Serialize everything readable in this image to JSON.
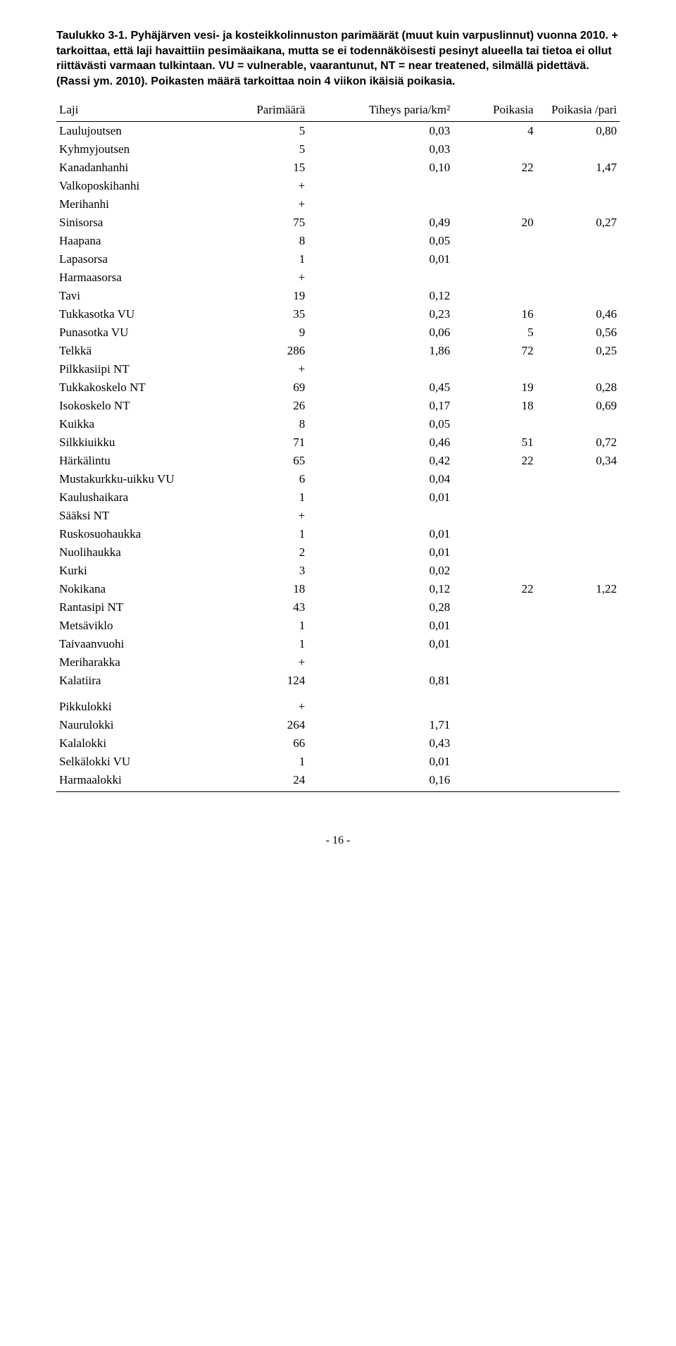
{
  "caption": "Taulukko 3-1. Pyhäjärven vesi- ja kosteikkolinnuston parimäärät (muut kuin varpuslinnut) vuonna 2010. + tarkoittaa, että laji havaittiin pesimäaikana, mutta se ei todennäköisesti pesinyt alueella tai tietoa ei ollut riittävästi varmaan tulkintaan. VU = vulnerable, vaarantunut, NT = near treatened, silmällä pidettävä. (Rassi ym. 2010). Poikasten määrä tarkoittaa noin 4 viikon ikäisiä poikasia.",
  "columns": {
    "laji": "Laji",
    "parimaara": "Parimäärä",
    "tiheys": "Tiheys paria/km²",
    "poikasia": "Poikasia",
    "poikasia_pari": "Poikasia /pari"
  },
  "rows": [
    {
      "laji": "Laulujoutsen",
      "pari": "5",
      "tih": "0,03",
      "p1": "4",
      "p2": "0,80"
    },
    {
      "laji": "Kyhmyjoutsen",
      "pari": "5",
      "tih": "0,03",
      "p1": "",
      "p2": ""
    },
    {
      "laji": "Kanadanhanhi",
      "pari": "15",
      "tih": "0,10",
      "p1": "22",
      "p2": "1,47"
    },
    {
      "laji": "Valkoposkihanhi",
      "pari": "+",
      "tih": "",
      "p1": "",
      "p2": ""
    },
    {
      "laji": "Merihanhi",
      "pari": "+",
      "tih": "",
      "p1": "",
      "p2": ""
    },
    {
      "laji": "Sinisorsa",
      "pari": "75",
      "tih": "0,49",
      "p1": "20",
      "p2": "0,27"
    },
    {
      "laji": "Haapana",
      "pari": "8",
      "tih": "0,05",
      "p1": "",
      "p2": ""
    },
    {
      "laji": "Lapasorsa",
      "pari": "1",
      "tih": "0,01",
      "p1": "",
      "p2": ""
    },
    {
      "laji": "Harmaasorsa",
      "pari": "+",
      "tih": "",
      "p1": "",
      "p2": ""
    },
    {
      "laji": "Tavi",
      "pari": "19",
      "tih": "0,12",
      "p1": "",
      "p2": ""
    },
    {
      "laji": "Tukkasotka VU",
      "pari": "35",
      "tih": "0,23",
      "p1": "16",
      "p2": "0,46"
    },
    {
      "laji": "Punasotka VU",
      "pari": "9",
      "tih": "0,06",
      "p1": "5",
      "p2": "0,56"
    },
    {
      "laji": "Telkkä",
      "pari": "286",
      "tih": "1,86",
      "p1": "72",
      "p2": "0,25"
    },
    {
      "laji": "Pilkkasiipi NT",
      "pari": "+",
      "tih": "",
      "p1": "",
      "p2": ""
    },
    {
      "laji": "Tukkakoskelo NT",
      "pari": "69",
      "tih": "0,45",
      "p1": "19",
      "p2": "0,28"
    },
    {
      "laji": "Isokoskelo NT",
      "pari": "26",
      "tih": "0,17",
      "p1": "18",
      "p2": "0,69"
    },
    {
      "laji": "Kuikka",
      "pari": "8",
      "tih": "0,05",
      "p1": "",
      "p2": ""
    },
    {
      "laji": "Silkkiuikku",
      "pari": "71",
      "tih": "0,46",
      "p1": "51",
      "p2": "0,72"
    },
    {
      "laji": "Härkälintu",
      "pari": "65",
      "tih": "0,42",
      "p1": "22",
      "p2": "0,34"
    },
    {
      "laji": "Mustakurkku-uikku VU",
      "pari": "6",
      "tih": "0,04",
      "p1": "",
      "p2": ""
    },
    {
      "laji": "Kaulushaikara",
      "pari": "1",
      "tih": "0,01",
      "p1": "",
      "p2": ""
    },
    {
      "laji": "Sääksi NT",
      "pari": "+",
      "tih": "",
      "p1": "",
      "p2": ""
    },
    {
      "laji": "Ruskosuohaukka",
      "pari": "1",
      "tih": "0,01",
      "p1": "",
      "p2": ""
    },
    {
      "laji": "Nuolihaukka",
      "pari": "2",
      "tih": "0,01",
      "p1": "",
      "p2": ""
    },
    {
      "laji": "Kurki",
      "pari": "3",
      "tih": "0,02",
      "p1": "",
      "p2": ""
    },
    {
      "laji": "Nokikana",
      "pari": "18",
      "tih": "0,12",
      "p1": "22",
      "p2": "1,22"
    },
    {
      "laji": "Rantasipi NT",
      "pari": "43",
      "tih": "0,28",
      "p1": "",
      "p2": ""
    },
    {
      "laji": "Metsäviklo",
      "pari": "1",
      "tih": "0,01",
      "p1": "",
      "p2": ""
    },
    {
      "laji": "Taivaanvuohi",
      "pari": "1",
      "tih": "0,01",
      "p1": "",
      "p2": ""
    },
    {
      "laji": "Meriharakka",
      "pari": "+",
      "tih": "",
      "p1": "",
      "p2": ""
    },
    {
      "laji": "Kalatiira",
      "pari": "124",
      "tih": "0,81",
      "p1": "",
      "p2": ""
    },
    {
      "laji": "Pikkulokki",
      "pari": "+",
      "tih": "",
      "p1": "",
      "p2": "",
      "gap": true
    },
    {
      "laji": "Naurulokki",
      "pari": "264",
      "tih": "1,71",
      "p1": "",
      "p2": ""
    },
    {
      "laji": "Kalalokki",
      "pari": "66",
      "tih": "0,43",
      "p1": "",
      "p2": ""
    },
    {
      "laji": "Selkälokki VU",
      "pari": "1",
      "tih": "0,01",
      "p1": "",
      "p2": ""
    },
    {
      "laji": "Harmaalokki",
      "pari": "24",
      "tih": "0,16",
      "p1": "",
      "p2": "",
      "last": true
    }
  ],
  "footer": "- 16 -"
}
